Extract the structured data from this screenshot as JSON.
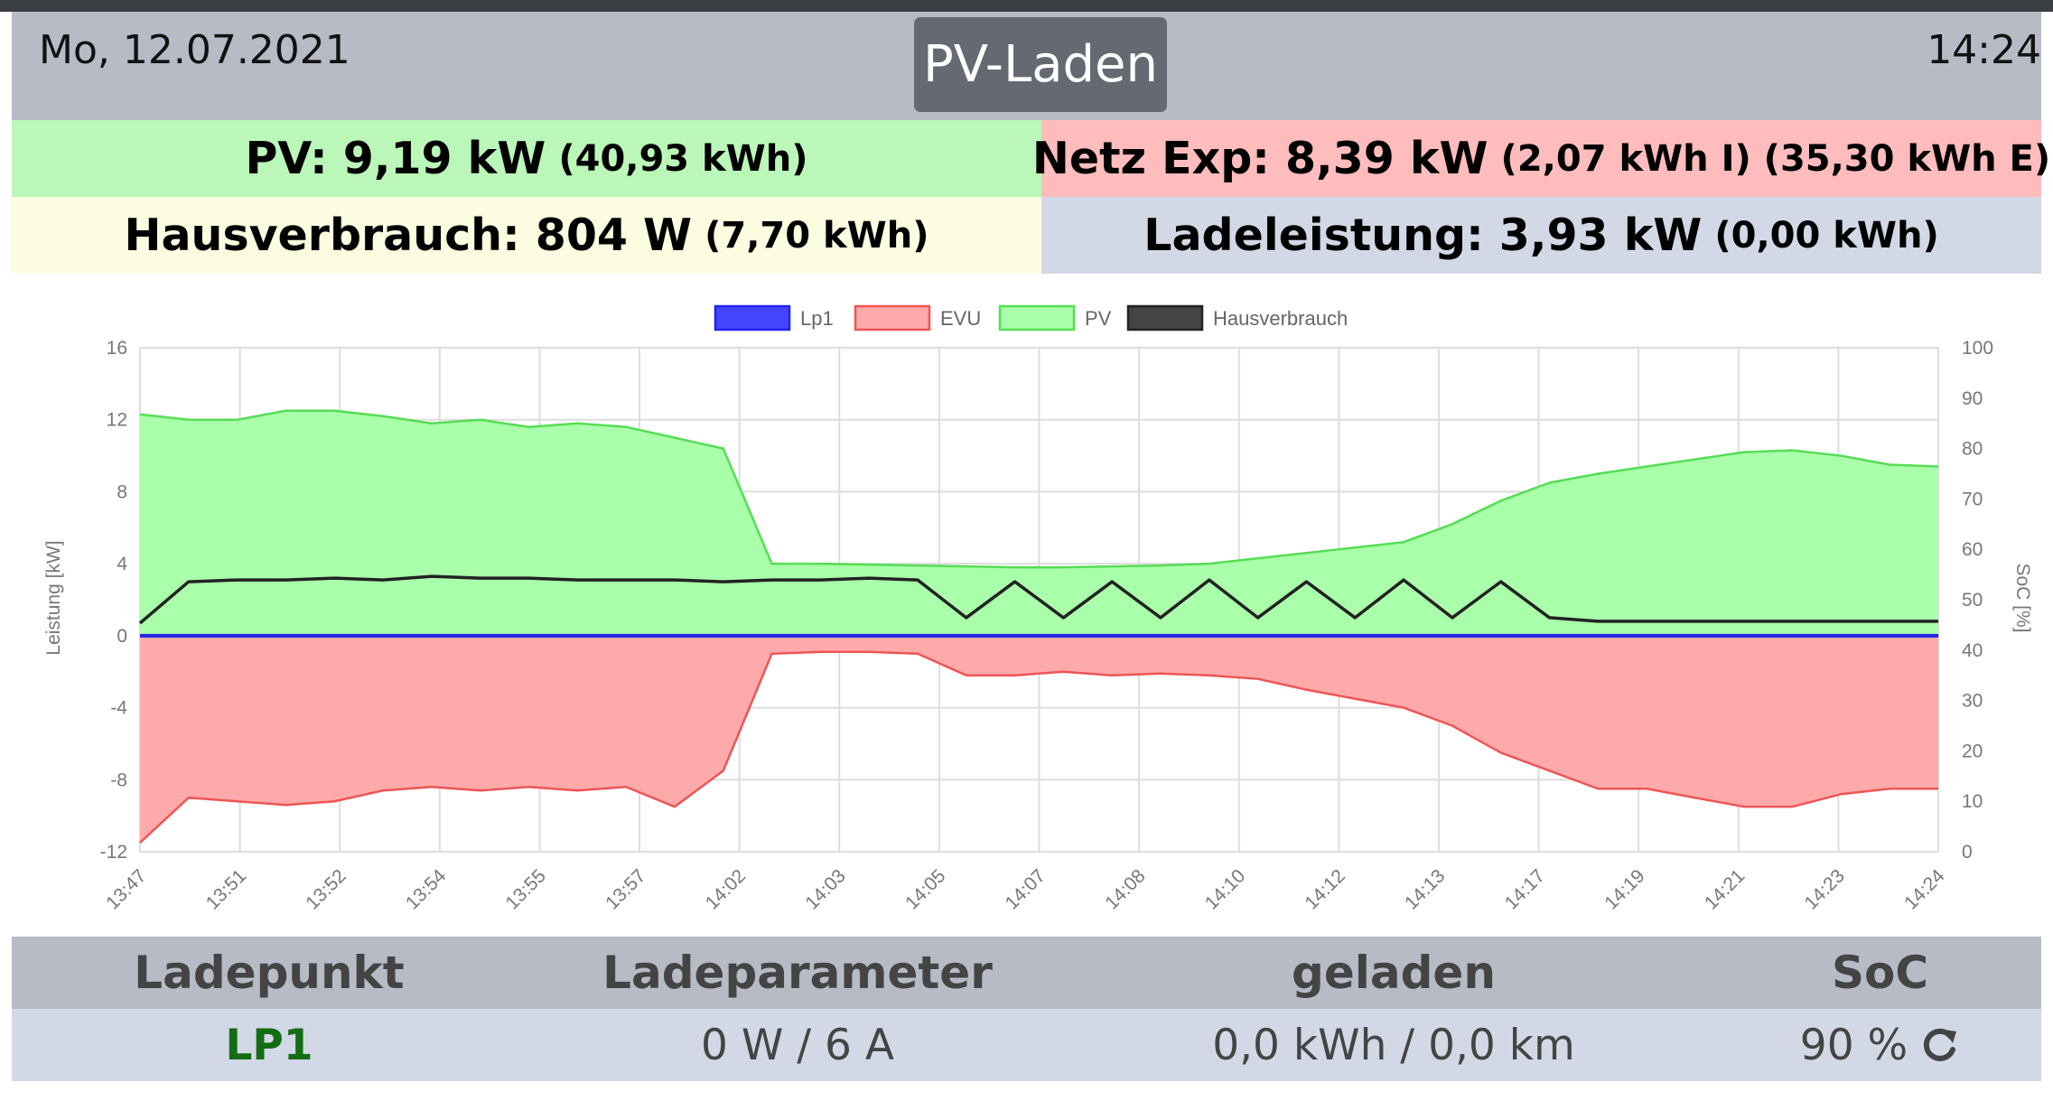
{
  "header": {
    "date": "Mo, 12.07.2021",
    "mode": "PV-Laden",
    "time": "14:24"
  },
  "tiles": {
    "pv": {
      "label": "PV: 9,19 kW",
      "detail": "(40,93 kWh)"
    },
    "grid": {
      "label": "Netz Exp: 8,39 kW",
      "detail": "(2,07 kWh I) (35,30 kWh E)"
    },
    "house": {
      "label": "Hausverbrauch: 804 W",
      "detail": "(7,70 kWh)"
    },
    "charge": {
      "label": "Ladeleistung: 3,93 kW",
      "detail": "(0,00 kWh)"
    }
  },
  "chart_data": {
    "type": "area",
    "legend_position": "top",
    "grid": true,
    "xlabel": "",
    "ylabel": "Leistung [kW]",
    "y2label": "SoC [%]",
    "ylim": [
      -12,
      16
    ],
    "y2lim": [
      0,
      100
    ],
    "yticks": [
      "16",
      "12",
      "8",
      "4",
      "0",
      "-4",
      "-8",
      "-12"
    ],
    "y2ticks": [
      "100",
      "90",
      "80",
      "70",
      "60",
      "50",
      "40",
      "30",
      "20",
      "10",
      "0"
    ],
    "x_ticks": [
      "13:47",
      "13:51",
      "13:52",
      "13:54",
      "13:55",
      "13:57",
      "14:02",
      "14:03",
      "14:05",
      "14:07",
      "14:08",
      "14:10",
      "14:12",
      "14:13",
      "14:17",
      "14:19",
      "14:21",
      "14:23",
      "14:24"
    ],
    "legend": [
      {
        "name": "Lp1",
        "stroke": "#2222ee",
        "fill": "#4444ff"
      },
      {
        "name": "EVU",
        "stroke": "#ee5555",
        "fill": "#ffaaaa"
      },
      {
        "name": "PV",
        "stroke": "#55dd55",
        "fill": "#aaffaa"
      },
      {
        "name": "Hausverbrauch",
        "stroke": "#222222",
        "fill": "#444444"
      }
    ],
    "series": [
      {
        "name": "PV",
        "values": [
          12.3,
          12.0,
          12.0,
          12.5,
          12.5,
          12.2,
          11.8,
          12.0,
          11.6,
          11.8,
          11.6,
          11.0,
          10.4,
          4.0,
          4.0,
          3.95,
          3.9,
          3.85,
          3.8,
          3.8,
          3.85,
          3.9,
          4.0,
          4.3,
          4.6,
          4.9,
          5.2,
          6.2,
          7.5,
          8.5,
          9.0,
          9.4,
          9.8,
          10.2,
          10.3,
          10.0,
          9.5,
          9.4
        ]
      },
      {
        "name": "EVU",
        "values": [
          -11.5,
          -9.0,
          -9.2,
          -9.4,
          -9.2,
          -8.6,
          -8.4,
          -8.6,
          -8.4,
          -8.6,
          -8.4,
          -9.5,
          -7.5,
          -1.0,
          -0.9,
          -0.9,
          -1.0,
          -2.2,
          -2.2,
          -2.0,
          -2.2,
          -2.1,
          -2.2,
          -2.4,
          -3.0,
          -3.5,
          -4.0,
          -5.0,
          -6.5,
          -7.5,
          -8.5,
          -8.5,
          -9.0,
          -9.5,
          -9.5,
          -8.8,
          -8.5,
          -8.5
        ]
      },
      {
        "name": "Hausverbrauch",
        "values": [
          0.7,
          3.0,
          3.1,
          3.1,
          3.2,
          3.1,
          3.3,
          3.2,
          3.2,
          3.1,
          3.1,
          3.1,
          3.0,
          3.1,
          3.1,
          3.2,
          3.1,
          1.0,
          3.0,
          1.0,
          3.0,
          1.0,
          3.1,
          1.0,
          3.0,
          1.0,
          3.1,
          1.0,
          3.0,
          1.0,
          0.8,
          0.8,
          0.8,
          0.8,
          0.8,
          0.8,
          0.8,
          0.8
        ]
      },
      {
        "name": "Lp1",
        "values": [
          0,
          0,
          0,
          0,
          0,
          0,
          0,
          0,
          0,
          0,
          0,
          0,
          0,
          0,
          0,
          0,
          0,
          0,
          0,
          0,
          0,
          0,
          0,
          0,
          0,
          0,
          0,
          0,
          0,
          0,
          0,
          0,
          0,
          0,
          0,
          0,
          0,
          0
        ]
      }
    ]
  },
  "table": {
    "headers": [
      "Ladepunkt",
      "Ladeparameter",
      "geladen",
      "SoC"
    ],
    "row": {
      "name": "LP1",
      "params": "0 W / 6 A",
      "charged": "0,0 kWh / 0,0 km",
      "soc": "90 %"
    }
  },
  "icons": {
    "soc_refresh": "refresh-icon"
  }
}
